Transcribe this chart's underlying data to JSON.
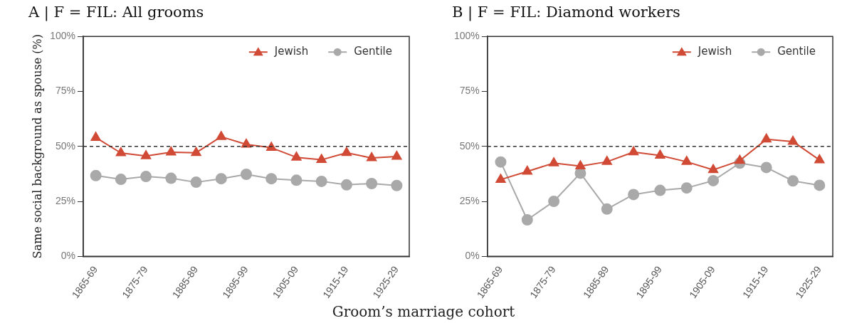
{
  "chart_data": [
    {
      "type": "line",
      "title": "A | F = FIL: All grooms",
      "ylabel": "Same social background as spouse (%)",
      "xlabel": "Groom’s marriage cohort",
      "categories": [
        "1865-69",
        null,
        "1875-79",
        null,
        "1885-89",
        null,
        "1895-99",
        null,
        "1905-09",
        null,
        "1915-19",
        null,
        "1925-29"
      ],
      "series": [
        {
          "name": "Jewish",
          "color": "#d04a35",
          "marker": "triangle",
          "values": [
            54.0,
            47.0,
            45.6,
            47.3,
            47.1,
            54.4,
            50.9,
            49.4,
            45.0,
            43.9,
            47.1,
            44.7,
            45.4
          ]
        },
        {
          "name": "Gentile",
          "color": "#a9a9a9",
          "marker": "circle",
          "values": [
            36.7,
            35.0,
            36.3,
            35.5,
            33.7,
            35.3,
            37.3,
            35.3,
            34.6,
            34.1,
            32.5,
            33.1,
            32.2
          ]
        }
      ],
      "ylim": [
        0,
        100
      ],
      "yticks": [
        {
          "value": 0,
          "label": "0%"
        },
        {
          "value": 25,
          "label": "25%"
        },
        {
          "value": 50,
          "label": "50%"
        },
        {
          "value": 75,
          "label": "75%"
        },
        {
          "value": 100,
          "label": "100%"
        }
      ],
      "ref_lines": [
        {
          "axis": "y",
          "value": 50,
          "line_style": "dashed",
          "color": "#333333"
        }
      ],
      "grid": false,
      "legend": "top right",
      "line_style": "solid"
    },
    {
      "type": "line",
      "title": "B | F = FIL: Diamond workers",
      "categories": [
        "1865-69",
        null,
        "1875-79",
        null,
        "1885-89",
        null,
        "1895-99",
        null,
        "1905-09",
        null,
        "1915-19",
        null,
        "1925-29"
      ],
      "series": [
        {
          "name": "Jewish",
          "color": "#d04a35",
          "marker": "triangle",
          "values": [
            34.9,
            38.6,
            42.4,
            41.0,
            43.0,
            47.4,
            45.9,
            43.0,
            39.3,
            43.5,
            53.2,
            52.2,
            43.8
          ]
        },
        {
          "name": "Gentile",
          "color": "#a9a9a9",
          "marker": "circle",
          "values": [
            42.9,
            16.6,
            25.0,
            37.8,
            21.5,
            28.1,
            30.0,
            31.1,
            34.4,
            42.4,
            40.4,
            34.3,
            32.3
          ]
        }
      ],
      "ylim": [
        0,
        100
      ],
      "yticks": [
        {
          "value": 0,
          "label": "0%"
        },
        {
          "value": 25,
          "label": "25%"
        },
        {
          "value": 50,
          "label": "50%"
        },
        {
          "value": 75,
          "label": "75%"
        },
        {
          "value": 100,
          "label": "100%"
        }
      ],
      "ref_lines": [
        {
          "axis": "y",
          "value": 50,
          "line_style": "dashed",
          "color": "#333333"
        }
      ],
      "grid": false,
      "legend": "top right",
      "line_style": "solid"
    }
  ]
}
